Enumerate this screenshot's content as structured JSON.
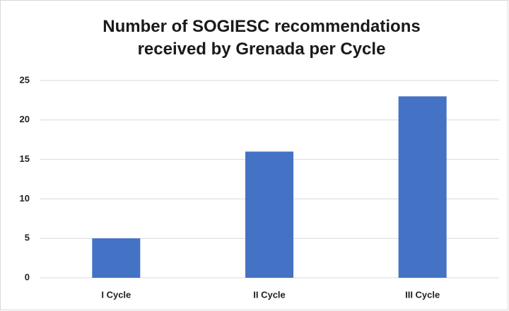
{
  "chart_data": {
    "type": "bar",
    "title": "Number of SOGIESC recommendations received by Grenada per Cycle",
    "categories": [
      "I Cycle",
      "II Cycle",
      "III Cycle"
    ],
    "values": [
      5,
      16,
      23
    ],
    "color": "#4472c4",
    "ylim": [
      0,
      25
    ],
    "yticks": [
      0,
      5,
      10,
      15,
      20,
      25
    ],
    "grid": true
  }
}
